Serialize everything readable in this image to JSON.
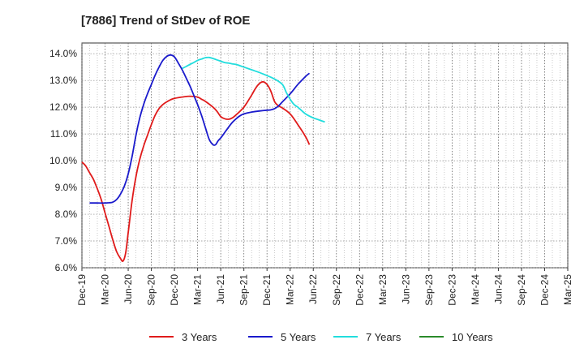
{
  "chart_data": {
    "type": "line",
    "title": "[7886]  Trend of StDev of ROE",
    "xlabel": "",
    "ylabel": "",
    "x_ticks": [
      "Dec-19",
      "Mar-20",
      "Jun-20",
      "Sep-20",
      "Dec-20",
      "Mar-21",
      "Jun-21",
      "Sep-21",
      "Dec-21",
      "Mar-22",
      "Jun-22",
      "Sep-22",
      "Dec-22",
      "Mar-23",
      "Jun-23",
      "Sep-23",
      "Dec-23",
      "Mar-24",
      "Jun-24",
      "Sep-24",
      "Dec-24",
      "Mar-25"
    ],
    "y_ticks": [
      "6.0%",
      "7.0%",
      "8.0%",
      "9.0%",
      "10.0%",
      "11.0%",
      "12.0%",
      "13.0%",
      "14.0%"
    ],
    "ylim": [
      6.0,
      14.4
    ],
    "grid": true,
    "legend_position": "bottom",
    "series": [
      {
        "name": "3 Years",
        "color": "#e01b1b",
        "points": [
          [
            0,
            9.95
          ],
          [
            0.5,
            9.8
          ],
          [
            1,
            9.55
          ],
          [
            1.5,
            9.3
          ],
          [
            2,
            8.95
          ],
          [
            2.5,
            8.55
          ],
          [
            3,
            8.05
          ],
          [
            3.5,
            7.55
          ],
          [
            4,
            7.05
          ],
          [
            4.5,
            6.6
          ],
          [
            5,
            6.35
          ],
          [
            5.33,
            6.25
          ],
          [
            5.67,
            6.55
          ],
          [
            6,
            7.3
          ],
          [
            6.5,
            8.5
          ],
          [
            7,
            9.4
          ],
          [
            7.5,
            10.05
          ],
          [
            8,
            10.55
          ],
          [
            8.5,
            10.95
          ],
          [
            9,
            11.35
          ],
          [
            9.5,
            11.7
          ],
          [
            10,
            11.95
          ],
          [
            10.5,
            12.1
          ],
          [
            11,
            12.2
          ],
          [
            11.5,
            12.28
          ],
          [
            12,
            12.33
          ],
          [
            13,
            12.38
          ],
          [
            14,
            12.41
          ],
          [
            15,
            12.38
          ],
          [
            15.5,
            12.3
          ],
          [
            16,
            12.22
          ],
          [
            17,
            12.0
          ],
          [
            17.5,
            11.85
          ],
          [
            18,
            11.65
          ],
          [
            18.5,
            11.57
          ],
          [
            19,
            11.55
          ],
          [
            19.5,
            11.6
          ],
          [
            20,
            11.72
          ],
          [
            21,
            12.0
          ],
          [
            22,
            12.45
          ],
          [
            22.5,
            12.7
          ],
          [
            23,
            12.88
          ],
          [
            23.5,
            12.95
          ],
          [
            24,
            12.85
          ],
          [
            24.5,
            12.6
          ],
          [
            25,
            12.2
          ],
          [
            25.5,
            12.05
          ],
          [
            26,
            11.97
          ],
          [
            27,
            11.75
          ],
          [
            28,
            11.35
          ],
          [
            29,
            10.9
          ],
          [
            29.5,
            10.6
          ]
        ]
      },
      {
        "name": "5 Years",
        "color": "#1a1acc",
        "points": [
          [
            1,
            8.42
          ],
          [
            2,
            8.42
          ],
          [
            3,
            8.42
          ],
          [
            3.5,
            8.43
          ],
          [
            4,
            8.45
          ],
          [
            4.5,
            8.55
          ],
          [
            5,
            8.75
          ],
          [
            5.5,
            9.05
          ],
          [
            6,
            9.5
          ],
          [
            6.5,
            10.15
          ],
          [
            7,
            10.95
          ],
          [
            7.5,
            11.6
          ],
          [
            8,
            12.1
          ],
          [
            8.5,
            12.5
          ],
          [
            9,
            12.85
          ],
          [
            9.5,
            13.2
          ],
          [
            10,
            13.5
          ],
          [
            10.5,
            13.75
          ],
          [
            11,
            13.9
          ],
          [
            11.5,
            13.95
          ],
          [
            12,
            13.88
          ],
          [
            12.5,
            13.65
          ],
          [
            13,
            13.4
          ],
          [
            13.5,
            13.1
          ],
          [
            14,
            12.8
          ],
          [
            14.5,
            12.45
          ],
          [
            15,
            12.1
          ],
          [
            15.5,
            11.7
          ],
          [
            16,
            11.25
          ],
          [
            16.5,
            10.8
          ],
          [
            17,
            10.6
          ],
          [
            17.33,
            10.6
          ],
          [
            17.67,
            10.75
          ],
          [
            18,
            10.85
          ],
          [
            18.5,
            11.05
          ],
          [
            19,
            11.25
          ],
          [
            19.5,
            11.43
          ],
          [
            20,
            11.57
          ],
          [
            20.5,
            11.68
          ],
          [
            21,
            11.75
          ],
          [
            22,
            11.82
          ],
          [
            23,
            11.86
          ],
          [
            24,
            11.89
          ],
          [
            24.5,
            11.9
          ],
          [
            25,
            11.95
          ],
          [
            25.5,
            12.05
          ],
          [
            26,
            12.2
          ],
          [
            27,
            12.5
          ],
          [
            28,
            12.85
          ],
          [
            29,
            13.15
          ],
          [
            29.5,
            13.27
          ]
        ]
      },
      {
        "name": "7 Years",
        "color": "#22dddd",
        "points": [
          [
            13,
            13.45
          ],
          [
            13.5,
            13.52
          ],
          [
            14,
            13.6
          ],
          [
            14.5,
            13.67
          ],
          [
            15,
            13.75
          ],
          [
            15.5,
            13.8
          ],
          [
            16,
            13.85
          ],
          [
            16.5,
            13.86
          ],
          [
            17,
            13.82
          ],
          [
            17.5,
            13.77
          ],
          [
            18,
            13.72
          ],
          [
            18.5,
            13.67
          ],
          [
            19,
            13.65
          ],
          [
            19.5,
            13.62
          ],
          [
            20,
            13.6
          ],
          [
            20.5,
            13.55
          ],
          [
            21,
            13.5
          ],
          [
            22,
            13.4
          ],
          [
            23,
            13.3
          ],
          [
            24,
            13.18
          ],
          [
            25,
            13.05
          ],
          [
            26,
            12.85
          ],
          [
            26.5,
            12.55
          ],
          [
            27,
            12.3
          ],
          [
            27.5,
            12.1
          ],
          [
            28,
            12.0
          ],
          [
            29,
            11.75
          ],
          [
            30,
            11.6
          ],
          [
            30.5,
            11.55
          ],
          [
            31,
            11.5
          ],
          [
            31.5,
            11.45
          ]
        ]
      },
      {
        "name": "10 Years",
        "color": "#2a8a2a",
        "points": []
      }
    ]
  }
}
